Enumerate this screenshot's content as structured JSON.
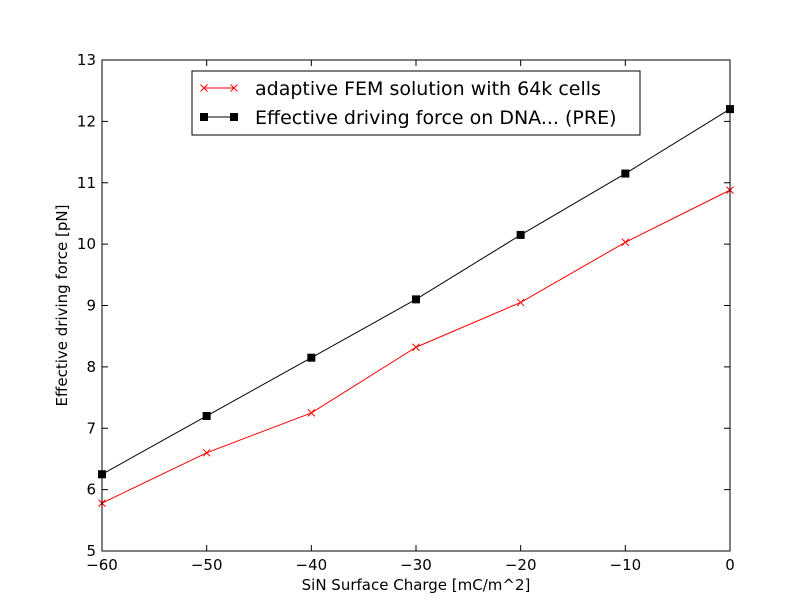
{
  "chart_data": {
    "type": "line",
    "title": "",
    "xlabel": "SiN Surface Charge [mC/m^2]",
    "ylabel": "Effective driving force [pN]",
    "xlim": [
      -60,
      0
    ],
    "ylim": [
      5,
      13
    ],
    "xticks": [
      -60,
      -50,
      -40,
      -30,
      -20,
      -10,
      0
    ],
    "yticks": [
      5,
      6,
      7,
      8,
      9,
      10,
      11,
      12,
      13
    ],
    "x": [
      -60,
      -50,
      -40,
      -30,
      -20,
      -10,
      0
    ],
    "grid": false,
    "legend_position": "top-center",
    "series": [
      {
        "name": "adaptive FEM solution with 64k cells",
        "color": "#ff0000",
        "marker": "x",
        "values": [
          5.78,
          6.6,
          7.25,
          8.32,
          9.05,
          10.03,
          10.88
        ]
      },
      {
        "name": "Effective driving force on DNA... (PRE)",
        "color": "#000000",
        "marker": "square",
        "values": [
          6.25,
          7.2,
          8.15,
          9.1,
          10.15,
          11.15,
          12.2
        ]
      }
    ]
  }
}
